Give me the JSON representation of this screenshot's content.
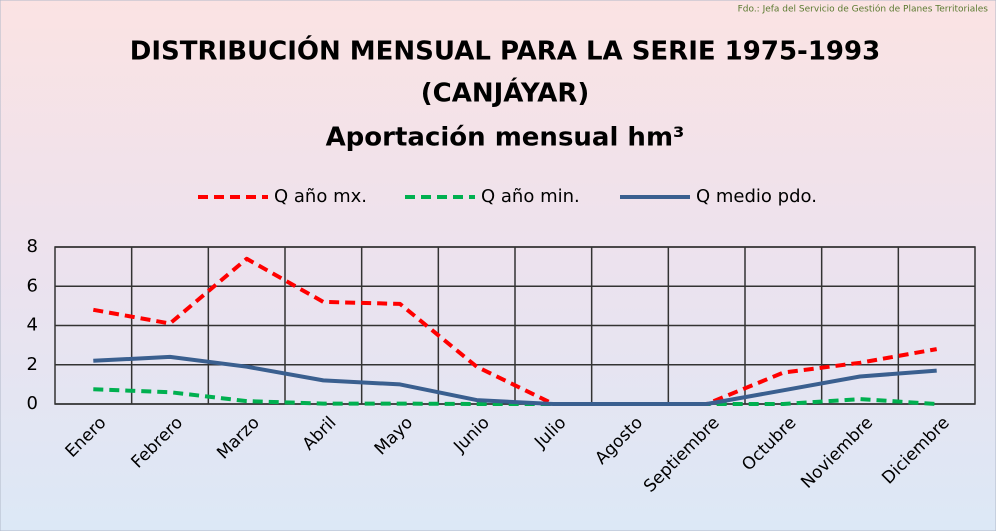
{
  "chart_data": {
    "type": "line",
    "note": "Fdo.: Jefa del Servicio de Gestión de Planes Territoriales",
    "title": [
      "DISTRIBUCIÓN MENSUAL PARA LA SERIE 1975-1993",
      "(CANJÁYAR)"
    ],
    "subtitle": "Aportación mensual hm³",
    "categories": [
      "Enero",
      "Febrero",
      "Marzo",
      "Abril",
      "Mayo",
      "Junio",
      "Julio",
      "Agosto",
      "Septiembre",
      "Octubre",
      "Noviembre",
      "Diciembre"
    ],
    "series": [
      {
        "name": "Q año mx.",
        "color": "#ff0000",
        "dashed": true,
        "values": [
          4.8,
          4.1,
          7.4,
          5.2,
          5.1,
          1.9,
          0,
          0,
          0,
          1.6,
          2.1,
          2.8
        ]
      },
      {
        "name": "Q año min.",
        "color": "#00b050",
        "dashed": true,
        "values": [
          0.75,
          0.6,
          0.15,
          0.02,
          0.02,
          0,
          0,
          0,
          0,
          0,
          0.25,
          0
        ]
      },
      {
        "name": "Q medio pdo.",
        "color": "#3a5f8f",
        "dashed": false,
        "values": [
          2.2,
          2.4,
          1.9,
          1.2,
          1.0,
          0.2,
          0,
          0,
          0,
          0.7,
          1.4,
          1.7
        ]
      }
    ],
    "ylim": [
      0,
      8
    ],
    "yticks": [
      0,
      2,
      4,
      6,
      8
    ],
    "grid": true,
    "legend": "top"
  }
}
